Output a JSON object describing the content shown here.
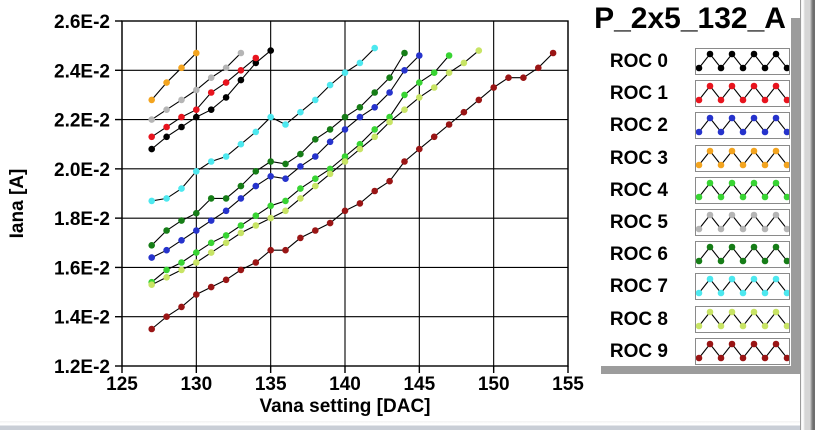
{
  "title": "P_2x5_132_A",
  "chart_data": {
    "type": "line",
    "title": "P_2x5_132_A",
    "xlabel": "Vana setting [DAC]",
    "ylabel": "Iana [A]",
    "xlim": [
      125,
      155
    ],
    "ylim": [
      0.012,
      0.026
    ],
    "ylim_e2": [
      1.2,
      2.6
    ],
    "grid": true,
    "legend_position": "right",
    "x_tick_labels": [
      "125",
      "130",
      "135",
      "140",
      "145",
      "150",
      "155"
    ],
    "x_tick_values": [
      125,
      130,
      135,
      140,
      145,
      150,
      155
    ],
    "y_tick_labels": [
      "2.6E-2",
      "2.4E-2",
      "2.2E-2",
      "2.0E-2",
      "1.8E-2",
      "1.6E-2",
      "1.4E-2",
      "1.2E-2"
    ],
    "y_tick_values_e2": [
      2.6,
      2.4,
      2.2,
      2.0,
      1.8,
      1.6,
      1.4,
      1.2
    ],
    "values_unit": "1e-2 A",
    "x_step": 1,
    "line_color": "#000000",
    "series": [
      {
        "name": "ROC 0",
        "color": "#000000",
        "x_start": 127,
        "values_e2": [
          2.08,
          2.13,
          2.17,
          2.21,
          2.24,
          2.29,
          2.36,
          2.43,
          2.48
        ]
      },
      {
        "name": "ROC 1",
        "color": "#e8141e",
        "x_start": 127,
        "values_e2": [
          2.13,
          2.17,
          2.21,
          2.24,
          2.31,
          2.35,
          2.4,
          2.45
        ]
      },
      {
        "name": "ROC 2",
        "color": "#2633cc",
        "x_start": 127,
        "values_e2": [
          1.64,
          1.67,
          1.71,
          1.75,
          1.79,
          1.83,
          1.88,
          1.93,
          1.97,
          1.96,
          2.01,
          2.05,
          2.11,
          2.16,
          2.21,
          2.25,
          2.31,
          2.4,
          2.46
        ]
      },
      {
        "name": "ROC 3",
        "color": "#f3a41f",
        "x_start": 127,
        "values_e2": [
          2.28,
          2.35,
          2.41,
          2.47
        ]
      },
      {
        "name": "ROC 4",
        "color": "#38d433",
        "x_start": 127,
        "values_e2": [
          1.54,
          1.59,
          1.62,
          1.66,
          1.7,
          1.73,
          1.77,
          1.81,
          1.85,
          1.87,
          1.92,
          1.96,
          2.0,
          2.05,
          2.1,
          2.16,
          2.21,
          2.3,
          2.35,
          2.39,
          2.46
        ]
      },
      {
        "name": "ROC 5",
        "color": "#b5b5b5",
        "x_start": 127,
        "values_e2": [
          2.2,
          2.24,
          2.28,
          2.32,
          2.37,
          2.41,
          2.47
        ]
      },
      {
        "name": "ROC 6",
        "color": "#167d17",
        "x_start": 127,
        "values_e2": [
          1.69,
          1.75,
          1.79,
          1.82,
          1.88,
          1.88,
          1.93,
          1.99,
          2.03,
          2.02,
          2.06,
          2.12,
          2.16,
          2.21,
          2.25,
          2.31,
          2.37,
          2.47
        ]
      },
      {
        "name": "ROC 7",
        "color": "#4de8ef",
        "x_start": 127,
        "values_e2": [
          1.87,
          1.88,
          1.92,
          1.99,
          2.03,
          2.05,
          2.1,
          2.15,
          2.21,
          2.18,
          2.23,
          2.28,
          2.34,
          2.39,
          2.43,
          2.49
        ]
      },
      {
        "name": "ROC 8",
        "color": "#c8e465",
        "x_start": 127,
        "values_e2": [
          1.53,
          1.56,
          1.59,
          1.62,
          1.66,
          1.7,
          1.74,
          1.77,
          1.8,
          1.83,
          1.88,
          1.93,
          1.98,
          2.03,
          2.08,
          2.13,
          2.19,
          2.24,
          2.29,
          2.33,
          2.39,
          2.43,
          2.48
        ]
      },
      {
        "name": "ROC 9",
        "color": "#9a1515",
        "x_start": 127,
        "values_e2": [
          1.35,
          1.4,
          1.44,
          1.49,
          1.52,
          1.55,
          1.59,
          1.62,
          1.67,
          1.67,
          1.72,
          1.75,
          1.78,
          1.83,
          1.86,
          1.91,
          1.95,
          2.03,
          2.08,
          2.13,
          2.18,
          2.23,
          2.28,
          2.33,
          2.37,
          2.37,
          2.41,
          2.47
        ]
      }
    ]
  }
}
